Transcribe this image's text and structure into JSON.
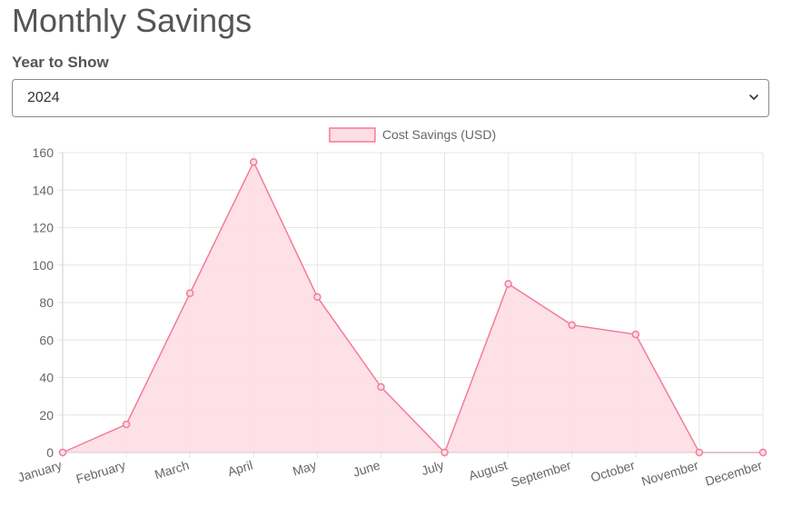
{
  "page": {
    "title": "Monthly Savings"
  },
  "filter": {
    "label": "Year to Show",
    "selected": "2024"
  },
  "colors": {
    "line": "#f27c9a",
    "fill": "#fedde4",
    "grid": "#e6e6e6",
    "axis": "#666666"
  },
  "icons": {
    "select": "chevron-down-icon"
  },
  "chart_data": {
    "type": "area",
    "categories": [
      "January",
      "February",
      "March",
      "April",
      "May",
      "June",
      "July",
      "August",
      "September",
      "October",
      "November",
      "December"
    ],
    "series": [
      {
        "name": "Cost Savings (USD)",
        "values": [
          0,
          15,
          85,
          155,
          83,
          35,
          0,
          90,
          68,
          63,
          0,
          0
        ]
      }
    ],
    "yticks": [
      "0",
      "20",
      "40",
      "60",
      "80",
      "100",
      "120",
      "140",
      "160"
    ],
    "ylim": [
      0,
      160
    ],
    "grid": true,
    "legend": "top-center"
  }
}
